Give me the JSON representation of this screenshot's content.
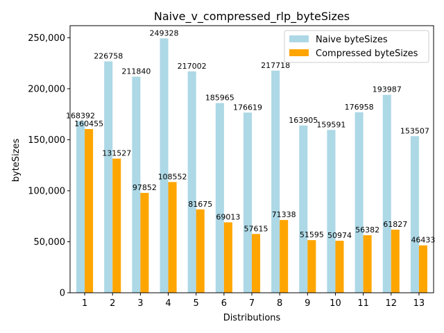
{
  "chart_data": {
    "type": "bar",
    "title": "Naive_v_compressed_rlp_byteSizes",
    "xlabel": "Distributions",
    "ylabel": "byteSizes",
    "categories": [
      "1",
      "2",
      "3",
      "4",
      "5",
      "6",
      "7",
      "8",
      "9",
      "10",
      "11",
      "12",
      "13"
    ],
    "series": [
      {
        "name": "Naive byteSizes",
        "color": "#add8e6",
        "values": [
          168392,
          226758,
          211840,
          249328,
          217002,
          185965,
          176619,
          217718,
          163905,
          159591,
          176958,
          193987,
          153507
        ]
      },
      {
        "name": "Compressed byteSizes",
        "color": "#ffa500",
        "values": [
          160455,
          131527,
          97852,
          108552,
          81675,
          69013,
          57615,
          71338,
          51595,
          50974,
          56382,
          61827,
          46433
        ]
      }
    ],
    "ylim": [
      0,
      261800
    ],
    "yticks": [
      0,
      50000,
      100000,
      150000,
      200000,
      250000
    ],
    "ytick_labels": [
      "0",
      "50,000",
      "100,000",
      "150,000",
      "200,000",
      "250,000"
    ],
    "grid": false,
    "legend_position": "top-right"
  }
}
